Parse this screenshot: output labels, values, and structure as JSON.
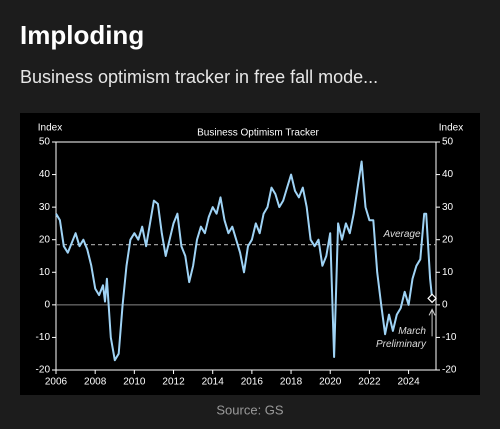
{
  "header": {
    "title": "Imploding",
    "subtitle": "Business optimism tracker in free fall mode..."
  },
  "source": "Source: GS",
  "chart_data": {
    "type": "line",
    "title": "Business Optimism Tracker",
    "y_label": "Index",
    "y2_label": "Index",
    "x": [
      2006.0,
      2006.2,
      2006.4,
      2006.6,
      2006.8,
      2007.0,
      2007.2,
      2007.4,
      2007.6,
      2007.8,
      2008.0,
      2008.2,
      2008.4,
      2008.5,
      2008.6,
      2008.8,
      2009.0,
      2009.2,
      2009.4,
      2009.6,
      2009.8,
      2010.0,
      2010.2,
      2010.4,
      2010.6,
      2010.8,
      2011.0,
      2011.2,
      2011.4,
      2011.6,
      2011.8,
      2012.0,
      2012.2,
      2012.4,
      2012.6,
      2012.8,
      2013.0,
      2013.2,
      2013.4,
      2013.6,
      2013.8,
      2014.0,
      2014.2,
      2014.4,
      2014.6,
      2014.8,
      2015.0,
      2015.2,
      2015.4,
      2015.6,
      2015.8,
      2016.0,
      2016.2,
      2016.4,
      2016.6,
      2016.8,
      2017.0,
      2017.2,
      2017.4,
      2017.6,
      2017.8,
      2018.0,
      2018.2,
      2018.4,
      2018.6,
      2018.8,
      2019.0,
      2019.2,
      2019.4,
      2019.6,
      2019.8,
      2020.0,
      2020.2,
      2020.4,
      2020.6,
      2020.8,
      2021.0,
      2021.2,
      2021.4,
      2021.6,
      2021.8,
      2022.0,
      2022.2,
      2022.4,
      2022.6,
      2022.8,
      2023.0,
      2023.2,
      2023.4,
      2023.6,
      2023.8,
      2024.0,
      2024.2,
      2024.4,
      2024.6,
      2024.8,
      2024.9,
      2025.1,
      2025.2
    ],
    "series": [
      {
        "name": "Business Optimism Tracker",
        "color": "#9fd3f5",
        "values": [
          28,
          26,
          18,
          16,
          19,
          22,
          18,
          20,
          17,
          12,
          5,
          3,
          6,
          1,
          8,
          -10,
          -17,
          -15,
          0,
          12,
          20,
          22,
          20,
          24,
          18,
          25,
          32,
          31,
          22,
          15,
          20,
          25,
          28,
          18,
          15,
          7,
          12,
          20,
          24,
          22,
          27,
          30,
          28,
          33,
          26,
          22,
          24,
          20,
          16,
          10,
          18,
          20,
          25,
          22,
          28,
          30,
          36,
          34,
          30,
          32,
          36,
          40,
          35,
          33,
          36,
          30,
          20,
          18,
          20,
          12,
          15,
          22,
          -16,
          25,
          20,
          25,
          22,
          28,
          36,
          44,
          30,
          26,
          26,
          10,
          0,
          -9,
          -3,
          -8,
          -3,
          -1,
          4,
          0,
          8,
          12,
          14,
          28,
          28,
          8,
          2
        ]
      }
    ],
    "average": 18.5,
    "average_color": "#999999",
    "annotations": [
      "Average",
      "March",
      "Preliminary"
    ],
    "xlim": [
      2006,
      2025.4
    ],
    "xticks": [
      2006,
      2008,
      2010,
      2012,
      2014,
      2016,
      2018,
      2020,
      2022,
      2024
    ],
    "ylim": [
      -20,
      50
    ],
    "yticks": [
      -20,
      -10,
      0,
      10,
      20,
      30,
      40,
      50
    ],
    "y2lim": [
      -20,
      50
    ],
    "y2ticks": [
      -20,
      -10,
      0,
      10,
      20,
      30,
      40,
      50
    ]
  }
}
